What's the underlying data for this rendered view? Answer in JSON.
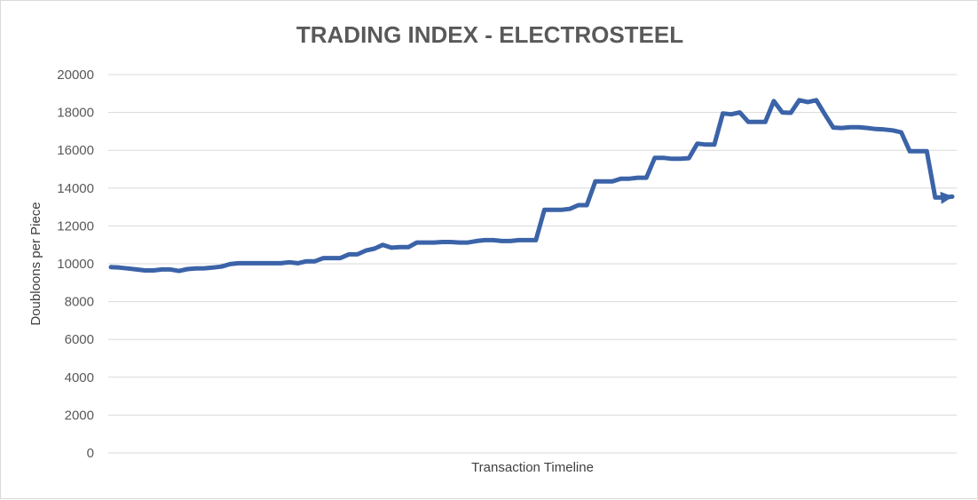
{
  "chart_data": {
    "type": "line",
    "title": "TRADING INDEX - ELECTROSTEEL",
    "xlabel": "Transaction Timeline",
    "ylabel": "Doubloons per Piece",
    "ylim": [
      0,
      20000
    ],
    "yticks": [
      0,
      2000,
      4000,
      6000,
      8000,
      10000,
      12000,
      14000,
      16000,
      18000,
      20000
    ],
    "grid": true,
    "legend": "none",
    "line_color": "#3b63a8",
    "end_marker": "arrow",
    "series": [
      {
        "values": [
          9820,
          9800,
          9750,
          9700,
          9650,
          9650,
          9700,
          9700,
          9620,
          9720,
          9750,
          9760,
          9800,
          9850,
          9980,
          10030,
          10030,
          10030,
          10030,
          10030,
          10030,
          10080,
          10030,
          10130,
          10130,
          10300,
          10300,
          10300,
          10500,
          10500,
          10700,
          10800,
          11000,
          10850,
          10880,
          10880,
          11120,
          11120,
          11120,
          11150,
          11150,
          11120,
          11120,
          11200,
          11250,
          11250,
          11200,
          11200,
          11250,
          11250,
          11250,
          12850,
          12850,
          12850,
          12900,
          13100,
          13100,
          14350,
          14350,
          14350,
          14500,
          14500,
          14550,
          14550,
          15600,
          15600,
          15550,
          15550,
          15580,
          16350,
          16300,
          16300,
          17950,
          17900,
          18000,
          17500,
          17500,
          17500,
          18600,
          18000,
          17980,
          18650,
          18550,
          18650,
          17900,
          17200,
          17180,
          17220,
          17220,
          17180,
          17120,
          17100,
          17050,
          16950,
          15950,
          15950,
          15950,
          13500,
          13500,
          13550
        ]
      }
    ]
  }
}
